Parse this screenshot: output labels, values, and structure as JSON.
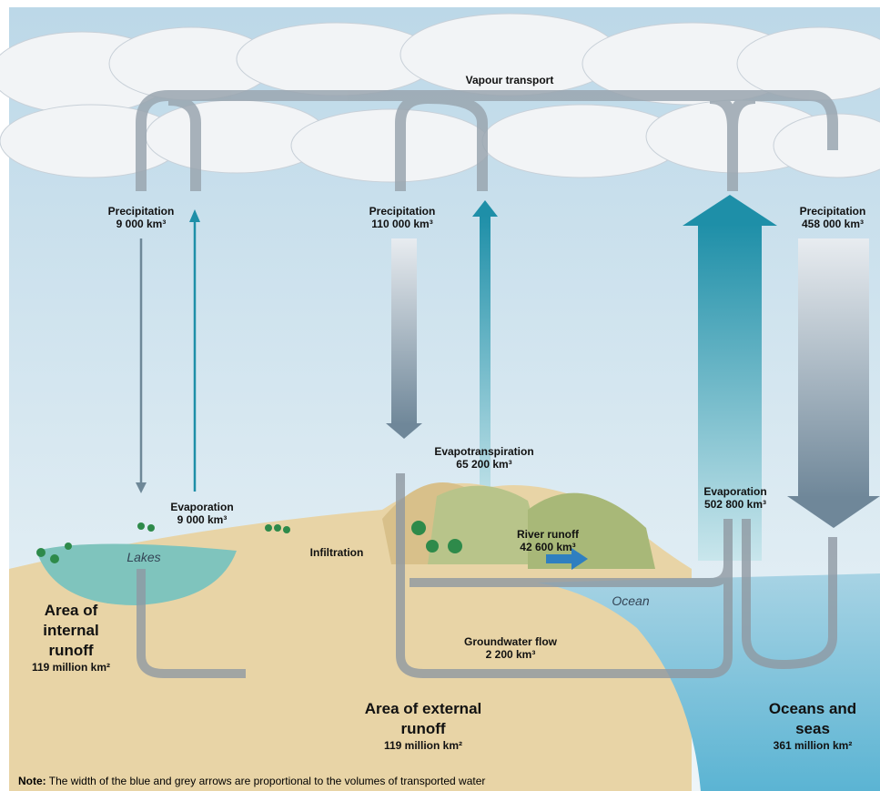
{
  "title": "Vapour transport",
  "flows": [
    {
      "label": "Precipitation",
      "amount": "9 000 km³"
    },
    {
      "label": "Evaporation",
      "amount": "9 000 km³"
    },
    {
      "label": "Precipitation",
      "amount": "110 000 km³"
    },
    {
      "label": "Evapotranspiration",
      "amount": "65 200 km³"
    },
    {
      "label": "Precipitation",
      "amount": "458 000 km³"
    },
    {
      "label": "Evaporation",
      "amount": "502 800 km³"
    },
    {
      "label": "River runoff",
      "amount": "42 600 km³"
    },
    {
      "label": "Groundwater flow",
      "amount": "2 200 km³"
    }
  ],
  "places": {
    "lakes": "Lakes",
    "ocean": "Ocean",
    "infiltration": "Infiltration"
  },
  "areas": [
    {
      "name": "Area of internal runoff",
      "size": "119 million km²"
    },
    {
      "name": "Area of external runoff",
      "size": "119 million km²"
    },
    {
      "name": "Oceans and seas",
      "size": "361 million km²"
    }
  ],
  "note": {
    "prefix": "Note:",
    "text": "The width of the blue and grey arrows are proportional to the volumes of transported water"
  }
}
